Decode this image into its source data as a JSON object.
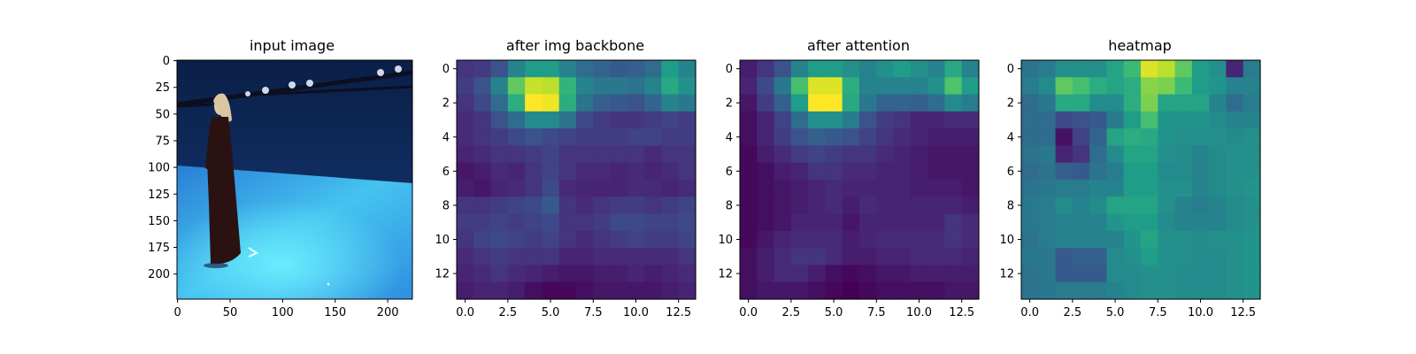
{
  "chart_data": [
    {
      "type": "image",
      "title": "input image",
      "xticks": [
        "0",
        "50",
        "100",
        "150",
        "200"
      ],
      "yticks": [
        "0",
        "25",
        "50",
        "75",
        "100",
        "125",
        "150",
        "175",
        "200"
      ],
      "xlim": [
        -0.5,
        223.5
      ],
      "ylim": [
        223.5,
        -0.5
      ]
    },
    {
      "type": "heatmap",
      "title": "after img backbone",
      "xticks": [
        "0.0",
        "2.5",
        "5.0",
        "7.5",
        "10.0",
        "12.5"
      ],
      "yticks": [
        "0",
        "2",
        "4",
        "6",
        "8",
        "10",
        "12"
      ],
      "xlim": [
        -0.5,
        13.5
      ],
      "ylim": [
        13.5,
        -0.5
      ],
      "colormap": "viridis",
      "values": [
        [
          0.15,
          0.17,
          0.25,
          0.45,
          0.55,
          0.55,
          0.45,
          0.35,
          0.32,
          0.28,
          0.3,
          0.35,
          0.55,
          0.45
        ],
        [
          0.18,
          0.25,
          0.45,
          0.75,
          0.92,
          0.9,
          0.65,
          0.45,
          0.4,
          0.4,
          0.38,
          0.45,
          0.6,
          0.5
        ],
        [
          0.15,
          0.22,
          0.35,
          0.62,
          1.0,
          0.98,
          0.62,
          0.38,
          0.3,
          0.28,
          0.25,
          0.32,
          0.45,
          0.4
        ],
        [
          0.12,
          0.15,
          0.25,
          0.35,
          0.48,
          0.48,
          0.38,
          0.22,
          0.18,
          0.15,
          0.15,
          0.18,
          0.2,
          0.18
        ],
        [
          0.12,
          0.15,
          0.18,
          0.22,
          0.25,
          0.22,
          0.2,
          0.18,
          0.18,
          0.18,
          0.2,
          0.2,
          0.18,
          0.18
        ],
        [
          0.1,
          0.12,
          0.15,
          0.15,
          0.18,
          0.2,
          0.15,
          0.15,
          0.15,
          0.15,
          0.15,
          0.12,
          0.15,
          0.15
        ],
        [
          0.06,
          0.08,
          0.12,
          0.1,
          0.15,
          0.2,
          0.15,
          0.12,
          0.12,
          0.1,
          0.12,
          0.1,
          0.12,
          0.15
        ],
        [
          0.08,
          0.06,
          0.1,
          0.12,
          0.15,
          0.22,
          0.12,
          0.1,
          0.1,
          0.1,
          0.12,
          0.12,
          0.1,
          0.12
        ],
        [
          0.15,
          0.15,
          0.18,
          0.2,
          0.22,
          0.28,
          0.15,
          0.12,
          0.15,
          0.18,
          0.18,
          0.15,
          0.18,
          0.2
        ],
        [
          0.18,
          0.18,
          0.2,
          0.18,
          0.2,
          0.22,
          0.15,
          0.15,
          0.18,
          0.22,
          0.22,
          0.2,
          0.2,
          0.22
        ],
        [
          0.15,
          0.2,
          0.22,
          0.2,
          0.18,
          0.2,
          0.15,
          0.12,
          0.15,
          0.18,
          0.2,
          0.18,
          0.18,
          0.2
        ],
        [
          0.12,
          0.15,
          0.18,
          0.15,
          0.15,
          0.15,
          0.1,
          0.1,
          0.12,
          0.12,
          0.12,
          0.12,
          0.12,
          0.15
        ],
        [
          0.1,
          0.12,
          0.15,
          0.12,
          0.1,
          0.08,
          0.06,
          0.06,
          0.08,
          0.08,
          0.1,
          0.08,
          0.1,
          0.12
        ],
        [
          0.08,
          0.1,
          0.1,
          0.08,
          0.04,
          0.02,
          0.02,
          0.04,
          0.06,
          0.06,
          0.06,
          0.06,
          0.08,
          0.1
        ]
      ]
    },
    {
      "type": "heatmap",
      "title": "after attention",
      "xticks": [
        "0.0",
        "2.5",
        "5.0",
        "7.5",
        "10.0",
        "12.5"
      ],
      "yticks": [
        "0",
        "2",
        "4",
        "6",
        "8",
        "10",
        "12"
      ],
      "xlim": [
        -0.5,
        13.5
      ],
      "ylim": [
        13.5,
        -0.5
      ],
      "colormap": "viridis",
      "values": [
        [
          0.08,
          0.15,
          0.25,
          0.45,
          0.55,
          0.55,
          0.5,
          0.45,
          0.5,
          0.55,
          0.5,
          0.45,
          0.6,
          0.45
        ],
        [
          0.1,
          0.22,
          0.4,
          0.7,
          0.95,
          0.95,
          0.62,
          0.45,
          0.45,
          0.45,
          0.45,
          0.5,
          0.72,
          0.55
        ],
        [
          0.06,
          0.18,
          0.3,
          0.55,
          1.0,
          1.0,
          0.6,
          0.4,
          0.32,
          0.32,
          0.3,
          0.35,
          0.48,
          0.42
        ],
        [
          0.04,
          0.1,
          0.2,
          0.35,
          0.5,
          0.5,
          0.42,
          0.25,
          0.18,
          0.15,
          0.1,
          0.1,
          0.12,
          0.12
        ],
        [
          0.04,
          0.1,
          0.18,
          0.25,
          0.3,
          0.28,
          0.25,
          0.2,
          0.15,
          0.12,
          0.1,
          0.08,
          0.08,
          0.08
        ],
        [
          0.02,
          0.08,
          0.12,
          0.18,
          0.2,
          0.18,
          0.15,
          0.15,
          0.12,
          0.1,
          0.08,
          0.06,
          0.06,
          0.06
        ],
        [
          0.02,
          0.04,
          0.08,
          0.1,
          0.15,
          0.15,
          0.12,
          0.12,
          0.1,
          0.1,
          0.08,
          0.06,
          0.06,
          0.06
        ],
        [
          0.02,
          0.04,
          0.06,
          0.08,
          0.1,
          0.12,
          0.1,
          0.1,
          0.1,
          0.1,
          0.08,
          0.08,
          0.08,
          0.06
        ],
        [
          0.02,
          0.04,
          0.06,
          0.08,
          0.1,
          0.12,
          0.08,
          0.12,
          0.1,
          0.1,
          0.1,
          0.1,
          0.1,
          0.08
        ],
        [
          0.02,
          0.04,
          0.06,
          0.1,
          0.1,
          0.1,
          0.06,
          0.1,
          0.1,
          0.1,
          0.1,
          0.1,
          0.15,
          0.12
        ],
        [
          0.02,
          0.06,
          0.1,
          0.12,
          0.12,
          0.12,
          0.08,
          0.1,
          0.12,
          0.12,
          0.12,
          0.12,
          0.15,
          0.12
        ],
        [
          0.04,
          0.08,
          0.12,
          0.15,
          0.15,
          0.12,
          0.08,
          0.08,
          0.1,
          0.1,
          0.12,
          0.12,
          0.12,
          0.1
        ],
        [
          0.04,
          0.08,
          0.12,
          0.12,
          0.08,
          0.04,
          0.02,
          0.04,
          0.06,
          0.06,
          0.08,
          0.08,
          0.08,
          0.08
        ],
        [
          0.04,
          0.06,
          0.06,
          0.06,
          0.04,
          0.02,
          0.0,
          0.02,
          0.04,
          0.04,
          0.04,
          0.04,
          0.06,
          0.06
        ]
      ]
    },
    {
      "type": "heatmap",
      "title": "heatmap",
      "xticks": [
        "0.0",
        "2.5",
        "5.0",
        "7.5",
        "10.0",
        "12.5"
      ],
      "yticks": [
        "0",
        "2",
        "4",
        "6",
        "8",
        "10",
        "12"
      ],
      "xlim": [
        -0.5,
        13.5
      ],
      "ylim": [
        13.5,
        -0.5
      ],
      "colormap": "viridis",
      "values": [
        [
          0.38,
          0.42,
          0.5,
          0.5,
          0.5,
          0.58,
          0.68,
          0.95,
          0.9,
          0.75,
          0.55,
          0.5,
          0.1,
          0.42
        ],
        [
          0.42,
          0.48,
          0.75,
          0.7,
          0.62,
          0.58,
          0.62,
          0.82,
          0.8,
          0.68,
          0.55,
          0.52,
          0.45,
          0.45
        ],
        [
          0.35,
          0.4,
          0.6,
          0.6,
          0.48,
          0.48,
          0.62,
          0.8,
          0.58,
          0.58,
          0.58,
          0.45,
          0.35,
          0.42
        ],
        [
          0.35,
          0.35,
          0.22,
          0.25,
          0.28,
          0.42,
          0.55,
          0.7,
          0.52,
          0.52,
          0.52,
          0.48,
          0.45,
          0.45
        ],
        [
          0.35,
          0.35,
          0.05,
          0.2,
          0.32,
          0.58,
          0.62,
          0.6,
          0.52,
          0.5,
          0.5,
          0.5,
          0.48,
          0.5
        ],
        [
          0.38,
          0.4,
          0.1,
          0.15,
          0.35,
          0.48,
          0.58,
          0.58,
          0.5,
          0.48,
          0.45,
          0.48,
          0.5,
          0.5
        ],
        [
          0.35,
          0.38,
          0.3,
          0.28,
          0.38,
          0.42,
          0.55,
          0.55,
          0.48,
          0.48,
          0.45,
          0.48,
          0.5,
          0.5
        ],
        [
          0.38,
          0.4,
          0.42,
          0.42,
          0.45,
          0.45,
          0.55,
          0.55,
          0.5,
          0.5,
          0.45,
          0.48,
          0.5,
          0.52
        ],
        [
          0.4,
          0.42,
          0.48,
          0.45,
          0.48,
          0.58,
          0.58,
          0.58,
          0.5,
          0.45,
          0.42,
          0.45,
          0.48,
          0.5
        ],
        [
          0.4,
          0.42,
          0.45,
          0.45,
          0.45,
          0.52,
          0.55,
          0.55,
          0.48,
          0.45,
          0.45,
          0.45,
          0.48,
          0.5
        ],
        [
          0.38,
          0.42,
          0.45,
          0.45,
          0.45,
          0.45,
          0.52,
          0.58,
          0.5,
          0.5,
          0.48,
          0.5,
          0.5,
          0.52
        ],
        [
          0.4,
          0.4,
          0.28,
          0.3,
          0.3,
          0.48,
          0.5,
          0.55,
          0.5,
          0.5,
          0.48,
          0.48,
          0.5,
          0.52
        ],
        [
          0.38,
          0.4,
          0.28,
          0.28,
          0.28,
          0.48,
          0.48,
          0.5,
          0.5,
          0.48,
          0.48,
          0.48,
          0.5,
          0.52
        ],
        [
          0.38,
          0.4,
          0.42,
          0.42,
          0.42,
          0.45,
          0.48,
          0.5,
          0.5,
          0.48,
          0.48,
          0.48,
          0.5,
          0.52
        ]
      ]
    }
  ]
}
